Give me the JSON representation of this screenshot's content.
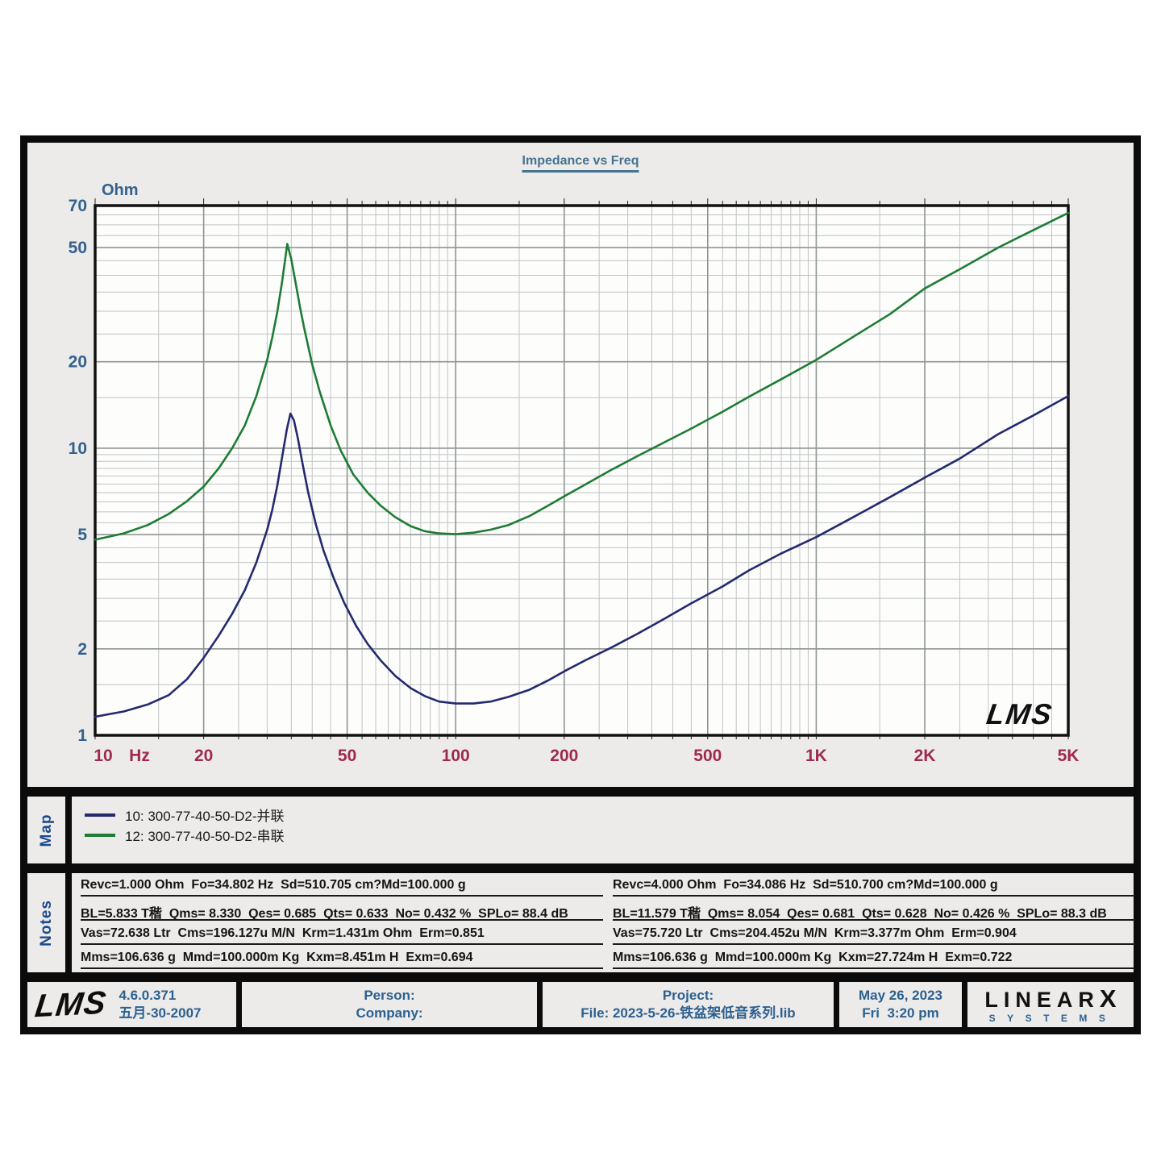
{
  "title": "Impedance vs Freq",
  "colors": {
    "title": "#44738f",
    "y_axis_labels": "#33618f",
    "x_axis_labels": "#9e2a4e",
    "panel_background": "#ecebe9",
    "plot_background": "#fdfdfc",
    "grid_major": "#8e9494",
    "grid_minor": "#c0c4c4",
    "series_10": "#232a6e",
    "series_12": "#1e7c34"
  },
  "chart_data": {
    "type": "line",
    "title": "Impedance vs Freq",
    "ylabel": "Ohm",
    "xlabel": "Hz",
    "x_scale": "log",
    "y_scale": "log",
    "xlim": [
      10,
      5000
    ],
    "ylim": [
      1,
      70
    ],
    "grid": "log major+minor grid on",
    "legend_position": "map panel below chart",
    "watermark": "LMS",
    "x_ticks": [
      {
        "v": 10,
        "label": "10"
      },
      {
        "v": 20,
        "label": "20"
      },
      {
        "v": 50,
        "label": "50"
      },
      {
        "v": 100,
        "label": "100"
      },
      {
        "v": 200,
        "label": "200"
      },
      {
        "v": 500,
        "label": "500"
      },
      {
        "v": 1000,
        "label": "1K"
      },
      {
        "v": 2000,
        "label": "2K"
      },
      {
        "v": 5000,
        "label": "5K"
      }
    ],
    "y_ticks": [
      {
        "v": 70,
        "label": "70"
      },
      {
        "v": 50,
        "label": "50"
      },
      {
        "v": 20,
        "label": "20"
      },
      {
        "v": 10,
        "label": "10"
      },
      {
        "v": 5,
        "label": "5"
      },
      {
        "v": 2,
        "label": "2"
      },
      {
        "v": 1,
        "label": "1"
      }
    ],
    "series": [
      {
        "id": "10",
        "name": "10: 300-77-40-50-D2-并联",
        "color": "#232a6e",
        "points": [
          [
            10,
            1.16
          ],
          [
            12,
            1.21
          ],
          [
            14,
            1.28
          ],
          [
            16,
            1.38
          ],
          [
            18,
            1.57
          ],
          [
            20,
            1.86
          ],
          [
            22,
            2.22
          ],
          [
            24,
            2.65
          ],
          [
            26,
            3.2
          ],
          [
            28,
            4.0
          ],
          [
            30,
            5.2
          ],
          [
            31,
            6.1
          ],
          [
            32,
            7.4
          ],
          [
            33,
            9.3
          ],
          [
            34,
            11.6
          ],
          [
            34.8,
            13.2
          ],
          [
            35.6,
            12.5
          ],
          [
            36.5,
            10.8
          ],
          [
            37.5,
            9.0
          ],
          [
            39,
            7.0
          ],
          [
            41,
            5.4
          ],
          [
            43,
            4.4
          ],
          [
            46,
            3.5
          ],
          [
            49,
            2.9
          ],
          [
            53,
            2.4
          ],
          [
            57,
            2.08
          ],
          [
            62,
            1.82
          ],
          [
            68,
            1.61
          ],
          [
            75,
            1.46
          ],
          [
            82,
            1.37
          ],
          [
            90,
            1.31
          ],
          [
            100,
            1.29
          ],
          [
            112,
            1.29
          ],
          [
            125,
            1.31
          ],
          [
            140,
            1.36
          ],
          [
            160,
            1.44
          ],
          [
            180,
            1.55
          ],
          [
            200,
            1.67
          ],
          [
            230,
            1.83
          ],
          [
            270,
            2.02
          ],
          [
            320,
            2.26
          ],
          [
            380,
            2.55
          ],
          [
            450,
            2.88
          ],
          [
            550,
            3.3
          ],
          [
            650,
            3.75
          ],
          [
            800,
            4.3
          ],
          [
            1000,
            4.9
          ],
          [
            1250,
            5.7
          ],
          [
            1600,
            6.75
          ],
          [
            2000,
            7.9
          ],
          [
            2500,
            9.2
          ],
          [
            3200,
            11.2
          ],
          [
            4000,
            13.0
          ],
          [
            5000,
            15.2
          ]
        ]
      },
      {
        "id": "12",
        "name": "12: 300-77-40-50-D2-串联",
        "color": "#1e7c34",
        "points": [
          [
            10,
            4.8
          ],
          [
            12,
            5.05
          ],
          [
            14,
            5.4
          ],
          [
            16,
            5.9
          ],
          [
            18,
            6.55
          ],
          [
            20,
            7.35
          ],
          [
            22,
            8.5
          ],
          [
            24,
            10.0
          ],
          [
            26,
            12.0
          ],
          [
            28,
            15.2
          ],
          [
            30,
            20.3
          ],
          [
            31,
            24.3
          ],
          [
            32,
            29.8
          ],
          [
            33,
            38.0
          ],
          [
            34.1,
            51.5
          ],
          [
            35,
            45.5
          ],
          [
            36,
            37.5
          ],
          [
            37,
            31.0
          ],
          [
            38,
            26.2
          ],
          [
            40,
            19.6
          ],
          [
            42,
            15.7
          ],
          [
            45,
            12.0
          ],
          [
            48,
            9.8
          ],
          [
            52,
            8.1
          ],
          [
            57,
            7.0
          ],
          [
            62,
            6.3
          ],
          [
            68,
            5.75
          ],
          [
            75,
            5.35
          ],
          [
            82,
            5.14
          ],
          [
            90,
            5.05
          ],
          [
            100,
            5.02
          ],
          [
            112,
            5.08
          ],
          [
            125,
            5.2
          ],
          [
            140,
            5.4
          ],
          [
            160,
            5.8
          ],
          [
            180,
            6.3
          ],
          [
            200,
            6.8
          ],
          [
            230,
            7.5
          ],
          [
            270,
            8.4
          ],
          [
            320,
            9.4
          ],
          [
            380,
            10.5
          ],
          [
            450,
            11.7
          ],
          [
            550,
            13.4
          ],
          [
            650,
            15.1
          ],
          [
            800,
            17.4
          ],
          [
            1000,
            20.3
          ],
          [
            1250,
            24.2
          ],
          [
            1600,
            29.3
          ],
          [
            2000,
            36.0
          ],
          [
            2500,
            42.0
          ],
          [
            3200,
            50.0
          ],
          [
            4000,
            57.5
          ],
          [
            5000,
            66.0
          ]
        ]
      }
    ]
  },
  "map_panel": {
    "label": "Map"
  },
  "notes_panel": {
    "label": "Notes",
    "left_lines": [
      "Revc=1.000 Ohm  Fo=34.802 Hz  Sd=510.705 cm?Md=100.000 g",
      "BL=5.833 T稭  Qms= 8.330  Qes= 0.685  Qts= 0.633  No= 0.432 %  SPLo= 88.4 dB",
      "Vas=72.638 Ltr  Cms=196.127u M/N  Krm=1.431m Ohm  Erm=0.851",
      "Mms=106.636 g  Mmd=100.000m Kg  Kxm=8.451m H  Exm=0.694"
    ],
    "right_lines": [
      "Revc=4.000 Ohm  Fo=34.086 Hz  Sd=510.700 cm?Md=100.000 g",
      "BL=11.579 T稭  Qms= 8.054  Qes= 0.681  Qts= 0.628  No= 0.426 %  SPLo= 88.3 dB",
      "Vas=75.720 Ltr  Cms=204.452u M/N  Krm=3.377m Ohm  Erm=0.904",
      "Mms=106.636 g  Mmd=100.000m Kg  Kxm=27.724m H  Exm=0.722"
    ]
  },
  "footer": {
    "lms_logo": "LMS",
    "version": "4.6.0.371",
    "version_date": "五月-30-2007",
    "person_label": "Person:",
    "company_label": "Company:",
    "project_label": "Project:",
    "file_label": "File: 2023-5-26-铁盆架低音系列.lib",
    "date": "May 26, 2023",
    "time": "Fri  3:20 pm",
    "brand_top": "LINEAR",
    "brand_x": "X",
    "brand_bottom": "SYSTEMS"
  }
}
